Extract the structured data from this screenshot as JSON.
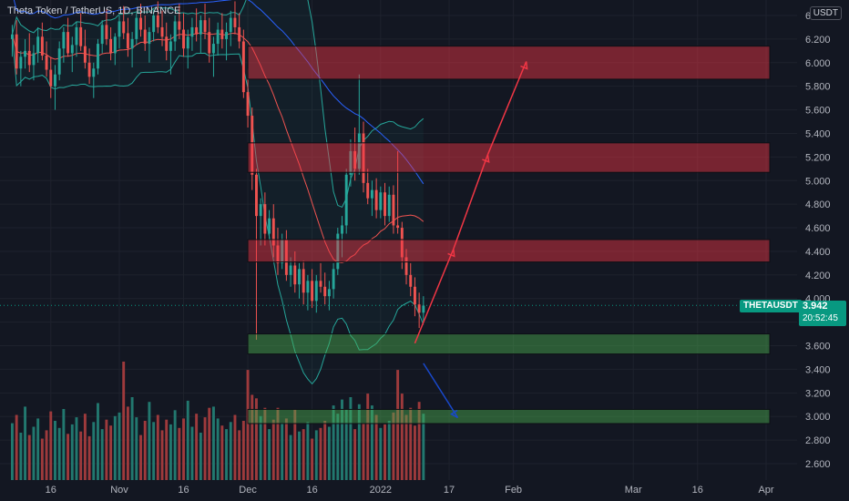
{
  "header": {
    "symbol_title": "Theta Token / TetherUS, 1D, BINANCE",
    "currency": "USDT"
  },
  "last_price": {
    "symbol": "THETAUSDT",
    "price": "3.942",
    "countdown": "20:52:45",
    "value": 3.942,
    "color": "#089981"
  },
  "colors": {
    "background": "#131722",
    "up": "#26a69a",
    "down": "#ef5350",
    "volume_up": "#22786f",
    "volume_down": "#9e3a3c",
    "bb_band": "#26a69a",
    "bb_basis": "#ef5350",
    "ma_long": "#2962ff",
    "resistance_fill": "rgba(242,54,69,0.45)",
    "support_fill": "rgba(76,175,80,0.45)",
    "arrow_up": "#f23645",
    "arrow_down": "#1848cc"
  },
  "chart_data": {
    "type": "candlestick",
    "title": "Theta Token / TetherUS, 1D, BINANCE",
    "y_axis": {
      "ticks": [
        "6.400",
        "6.200",
        "6.000",
        "5.800",
        "5.600",
        "5.400",
        "5.200",
        "5.000",
        "4.800",
        "4.600",
        "4.400",
        "4.200",
        "4.000",
        "3.800",
        "3.600",
        "3.400",
        "3.200",
        "3.000",
        "2.800",
        "2.600"
      ],
      "range": [
        2.52,
        6.55
      ]
    },
    "x_axis": {
      "ticks": [
        "16",
        "Nov",
        "16",
        "Dec",
        "16",
        "2022",
        "17",
        "Feb",
        "Mar",
        "16",
        "Apr"
      ]
    },
    "zones": [
      {
        "kind": "resistance",
        "low": 5.86,
        "high": 6.14
      },
      {
        "kind": "resistance",
        "low": 5.07,
        "high": 5.32
      },
      {
        "kind": "resistance",
        "low": 4.31,
        "high": 4.5
      },
      {
        "kind": "support",
        "low": 3.53,
        "high": 3.7
      },
      {
        "kind": "support",
        "low": 2.94,
        "high": 3.06
      }
    ],
    "projection_up": [
      [
        "2022-01-09",
        3.62
      ],
      [
        "2022-01-18",
        4.42
      ],
      [
        "2022-01-26",
        5.22
      ],
      [
        "2022-02-04",
        6.01
      ]
    ],
    "projection_down": [
      [
        "2022-01-11",
        3.45
      ],
      [
        "2022-01-19",
        2.99
      ]
    ],
    "candles_ohlc": [
      [
        6.2,
        6.32,
        6.05,
        6.24
      ],
      [
        6.24,
        6.36,
        5.9,
        5.95
      ],
      [
        5.95,
        6.1,
        5.8,
        6.05
      ],
      [
        6.05,
        6.2,
        5.95,
        6.1
      ],
      [
        6.1,
        6.25,
        5.92,
        5.98
      ],
      [
        5.98,
        6.15,
        5.85,
        6.08
      ],
      [
        6.08,
        6.3,
        6.0,
        6.22
      ],
      [
        6.22,
        6.34,
        6.02,
        6.06
      ],
      [
        6.06,
        6.18,
        5.88,
        5.94
      ],
      [
        5.94,
        6.05,
        5.7,
        5.8
      ],
      [
        5.8,
        5.98,
        5.6,
        5.9
      ],
      [
        5.9,
        6.18,
        5.85,
        6.12
      ],
      [
        6.12,
        6.3,
        6.0,
        6.26
      ],
      [
        6.26,
        6.38,
        6.05,
        6.08
      ],
      [
        6.08,
        6.22,
        5.92,
        6.15
      ],
      [
        6.15,
        6.35,
        6.05,
        6.3
      ],
      [
        6.3,
        6.42,
        6.1,
        6.14
      ],
      [
        6.14,
        6.28,
        5.95,
        6.0
      ],
      [
        6.0,
        6.12,
        5.82,
        5.88
      ],
      [
        5.88,
        6.0,
        5.7,
        5.95
      ],
      [
        5.95,
        6.2,
        5.9,
        6.16
      ],
      [
        6.16,
        6.36,
        6.08,
        6.32
      ],
      [
        6.32,
        6.45,
        6.15,
        6.2
      ],
      [
        6.2,
        6.3,
        6.02,
        6.08
      ],
      [
        6.08,
        6.25,
        5.98,
        6.22
      ],
      [
        6.22,
        6.4,
        6.12,
        6.35
      ],
      [
        6.35,
        6.48,
        6.2,
        6.25
      ],
      [
        6.25,
        6.38,
        6.05,
        6.12
      ],
      [
        6.12,
        6.26,
        5.96,
        6.2
      ],
      [
        6.2,
        6.42,
        6.15,
        6.38
      ],
      [
        6.38,
        6.5,
        6.22,
        6.28
      ],
      [
        6.28,
        6.4,
        6.1,
        6.16
      ],
      [
        6.16,
        6.3,
        6.0,
        6.26
      ],
      [
        6.26,
        6.45,
        6.18,
        6.4
      ],
      [
        6.4,
        6.52,
        6.25,
        6.3
      ],
      [
        6.3,
        6.44,
        6.14,
        6.22
      ],
      [
        6.22,
        6.34,
        6.02,
        6.1
      ],
      [
        6.1,
        6.24,
        5.9,
        6.18
      ],
      [
        6.18,
        6.4,
        6.1,
        6.35
      ],
      [
        6.35,
        6.5,
        6.2,
        6.28
      ],
      [
        6.28,
        6.42,
        6.05,
        6.12
      ],
      [
        6.12,
        6.28,
        5.95,
        6.22
      ],
      [
        6.22,
        6.38,
        6.1,
        6.3
      ],
      [
        6.3,
        6.46,
        6.18,
        6.24
      ],
      [
        6.24,
        6.4,
        6.08,
        6.36
      ],
      [
        6.36,
        6.5,
        6.2,
        6.26
      ],
      [
        6.26,
        6.38,
        6.0,
        6.08
      ],
      [
        6.08,
        6.22,
        5.88,
        6.16
      ],
      [
        6.16,
        6.34,
        6.06,
        6.28
      ],
      [
        6.28,
        6.42,
        6.12,
        6.2
      ],
      [
        6.2,
        6.34,
        6.02,
        6.26
      ],
      [
        6.26,
        6.44,
        6.14,
        6.38
      ],
      [
        6.38,
        6.52,
        6.24,
        6.3
      ],
      [
        6.3,
        6.42,
        6.12,
        6.18
      ],
      [
        6.18,
        6.28,
        5.7,
        5.75
      ],
      [
        5.75,
        5.95,
        5.45,
        5.55
      ],
      [
        5.55,
        5.62,
        4.92,
        5.05
      ],
      [
        5.05,
        5.1,
        3.65,
        4.7
      ],
      [
        4.7,
        4.85,
        4.45,
        4.8
      ],
      [
        4.8,
        4.9,
        4.45,
        4.55
      ],
      [
        4.55,
        4.75,
        4.5,
        4.68
      ],
      [
        4.68,
        4.8,
        4.35,
        4.45
      ],
      [
        4.45,
        4.6,
        4.2,
        4.3
      ],
      [
        4.3,
        4.55,
        4.25,
        4.5
      ],
      [
        4.5,
        4.58,
        4.15,
        4.2
      ],
      [
        4.2,
        4.35,
        4.1,
        4.28
      ],
      [
        4.28,
        4.4,
        4.05,
        4.12
      ],
      [
        4.12,
        4.3,
        4.0,
        4.25
      ],
      [
        4.25,
        4.32,
        3.95,
        4.05
      ],
      [
        4.05,
        4.2,
        3.9,
        4.15
      ],
      [
        4.15,
        4.25,
        3.92,
        3.98
      ],
      [
        3.98,
        4.2,
        3.88,
        4.15
      ],
      [
        4.15,
        4.3,
        4.05,
        4.1
      ],
      [
        4.1,
        4.22,
        3.95,
        4.02
      ],
      [
        4.02,
        4.15,
        3.9,
        4.08
      ],
      [
        4.08,
        4.3,
        4.0,
        4.25
      ],
      [
        4.25,
        4.6,
        4.2,
        4.55
      ],
      [
        4.55,
        4.7,
        4.35,
        4.62
      ],
      [
        4.62,
        5.1,
        4.55,
        5.05
      ],
      [
        5.05,
        5.35,
        4.95,
        5.25
      ],
      [
        5.25,
        5.45,
        5.0,
        5.1
      ],
      [
        5.1,
        5.9,
        5.05,
        5.4
      ],
      [
        5.4,
        5.5,
        4.9,
        4.98
      ],
      [
        4.98,
        5.1,
        4.8,
        4.85
      ],
      [
        4.85,
        5.0,
        4.7,
        4.92
      ],
      [
        4.92,
        5.02,
        4.68,
        4.75
      ],
      [
        4.75,
        4.95,
        4.68,
        4.9
      ],
      [
        4.9,
        4.98,
        4.62,
        4.7
      ],
      [
        4.7,
        4.95,
        4.65,
        4.88
      ],
      [
        4.88,
        4.96,
        4.55,
        4.62
      ],
      [
        4.62,
        5.25,
        4.55,
        4.6
      ],
      [
        4.6,
        4.65,
        4.25,
        4.35
      ],
      [
        4.35,
        4.42,
        4.12,
        4.2
      ],
      [
        4.2,
        4.3,
        4.02,
        4.1
      ],
      [
        4.1,
        4.18,
        3.85,
        3.95
      ],
      [
        3.95,
        4.05,
        3.75,
        3.88
      ],
      [
        3.88,
        4.02,
        3.8,
        3.94
      ]
    ],
    "volume": [
      48,
      55,
      40,
      62,
      38,
      45,
      52,
      35,
      42,
      58,
      50,
      44,
      60,
      39,
      47,
      53,
      41,
      56,
      37,
      49,
      65,
      43,
      51,
      46,
      54,
      57,
      100,
      62,
      70,
      53,
      38,
      50,
      66,
      49,
      55,
      42,
      51,
      47,
      59,
      44,
      52,
      67,
      45,
      56,
      40,
      53,
      61,
      62,
      52,
      46,
      43,
      49,
      55,
      42,
      50,
      93,
      72,
      69,
      54,
      61,
      43,
      51,
      61,
      48,
      52,
      38,
      60,
      41,
      43,
      49,
      35,
      42,
      44,
      50,
      45,
      63,
      56,
      68,
      60,
      70,
      43,
      64,
      48,
      73,
      63,
      55,
      44,
      47,
      50,
      57,
      93,
      73,
      55,
      61,
      46,
      66,
      56
    ]
  }
}
